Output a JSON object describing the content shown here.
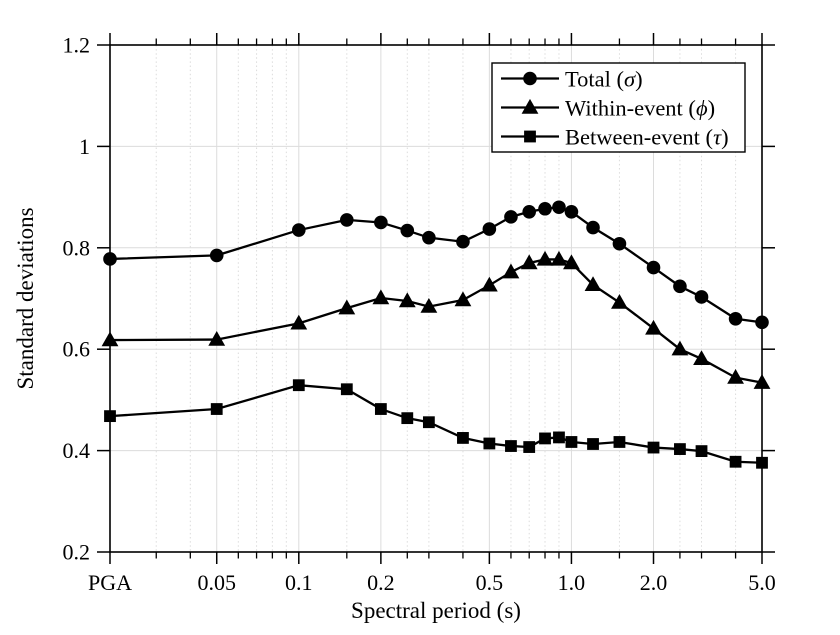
{
  "figure": {
    "background": "#ffffff",
    "foreground": "#000000",
    "grid_color": "#dcdcdc"
  },
  "chart_data": {
    "type": "line",
    "title": "",
    "xlabel": "Spectral period (s)",
    "ylabel": "Standard deviations",
    "x_scale": "log",
    "xlim": [
      0.0203,
      5.0
    ],
    "ylim": [
      0.2,
      1.2
    ],
    "grid": {
      "horizontal": "solid-light",
      "vertical_major": "solid-light",
      "vertical_minor": "dotted-light"
    },
    "x": [
      0.0203,
      0.05,
      0.1,
      0.15,
      0.2,
      0.25,
      0.3,
      0.4,
      0.5,
      0.6,
      0.7,
      0.8,
      0.9,
      1.0,
      1.2,
      1.5,
      2.0,
      2.5,
      3.0,
      4.0,
      5.0
    ],
    "x_first_point_label": "PGA",
    "series": [
      {
        "name": "Total",
        "symbol": "σ",
        "marker": "circle",
        "color": "#000000",
        "values": [
          0.778,
          0.785,
          0.835,
          0.855,
          0.85,
          0.834,
          0.82,
          0.812,
          0.837,
          0.861,
          0.871,
          0.877,
          0.88,
          0.871,
          0.84,
          0.808,
          0.761,
          0.724,
          0.703,
          0.66,
          0.653
        ]
      },
      {
        "name": "Within-event",
        "symbol": "ϕ",
        "marker": "triangle",
        "color": "#000000",
        "values": [
          0.618,
          0.619,
          0.651,
          0.681,
          0.701,
          0.695,
          0.684,
          0.697,
          0.726,
          0.752,
          0.77,
          0.777,
          0.777,
          0.77,
          0.727,
          0.692,
          0.641,
          0.6,
          0.581,
          0.544,
          0.534
        ]
      },
      {
        "name": "Between-event",
        "symbol": "τ",
        "marker": "square",
        "color": "#000000",
        "values": [
          0.468,
          0.482,
          0.529,
          0.521,
          0.482,
          0.464,
          0.456,
          0.425,
          0.414,
          0.409,
          0.407,
          0.424,
          0.426,
          0.417,
          0.413,
          0.417,
          0.406,
          0.403,
          0.399,
          0.378,
          0.376
        ]
      }
    ],
    "xticks": {
      "values": [
        0.0203,
        0.05,
        0.1,
        0.2,
        0.5,
        1.0,
        2.0,
        5.0
      ],
      "labels": [
        "PGA",
        "0.05",
        "0.1",
        "0.2",
        "0.5",
        "1.0",
        "2.0",
        "5.0"
      ]
    },
    "xticks_minor": [
      0.03,
      0.04,
      0.06,
      0.07,
      0.08,
      0.09,
      0.15,
      0.25,
      0.3,
      0.4,
      0.6,
      0.7,
      0.8,
      0.9,
      1.5,
      2.5,
      3.0,
      4.0
    ],
    "yticks": {
      "values": [
        0.2,
        0.4,
        0.6,
        0.8,
        1.0,
        1.2
      ],
      "labels": [
        "0.2",
        "0.4",
        "0.6",
        "0.8",
        "1",
        "1.2"
      ]
    },
    "legend": {
      "position": "top-right-inside",
      "border": true,
      "entries": [
        {
          "label": "Total",
          "symbol": "σ"
        },
        {
          "label": "Within-event",
          "symbol": "ϕ"
        },
        {
          "label": "Between-event",
          "symbol": "τ"
        }
      ]
    }
  }
}
